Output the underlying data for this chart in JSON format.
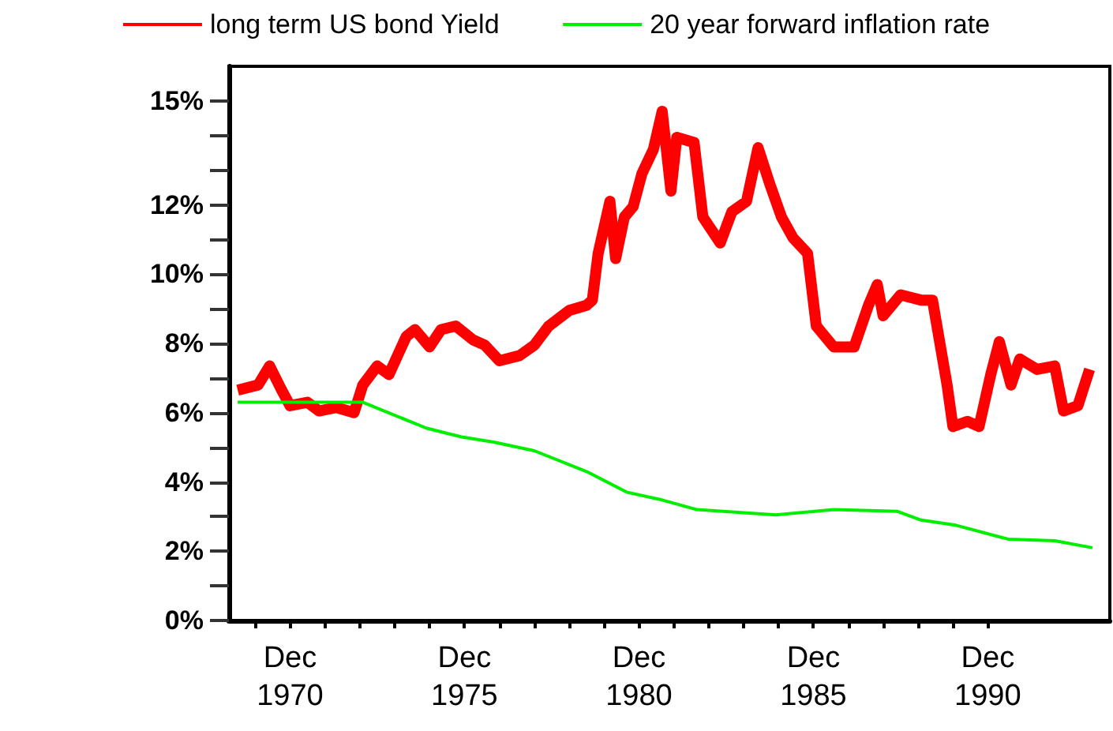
{
  "chart_data": {
    "type": "line",
    "legend": "top",
    "grid": false,
    "marker": "none",
    "line_style": "solid",
    "xlim": [
      "1969-03",
      "1994-06"
    ],
    "ylim": [
      0,
      16
    ],
    "xticks": [
      {
        "value": "1969-12",
        "label": null
      },
      {
        "value": "1970-12",
        "label": "Dec\n1970"
      },
      {
        "value": "1971-12",
        "label": null
      },
      {
        "value": "1972-12",
        "label": null
      },
      {
        "value": "1973-12",
        "label": null
      },
      {
        "value": "1974-12",
        "label": null
      },
      {
        "value": "1975-12",
        "label": "Dec\n1975"
      },
      {
        "value": "1976-12",
        "label": null
      },
      {
        "value": "1977-12",
        "label": null
      },
      {
        "value": "1978-12",
        "label": null
      },
      {
        "value": "1979-12",
        "label": null
      },
      {
        "value": "1980-12",
        "label": "Dec\n1980"
      },
      {
        "value": "1981-12",
        "label": null
      },
      {
        "value": "1982-12",
        "label": null
      },
      {
        "value": "1983-12",
        "label": null
      },
      {
        "value": "1984-12",
        "label": null
      },
      {
        "value": "1985-12",
        "label": "Dec\n1985"
      },
      {
        "value": "1986-12",
        "label": null
      },
      {
        "value": "1987-12",
        "label": null
      },
      {
        "value": "1988-12",
        "label": null
      },
      {
        "value": "1989-12",
        "label": null
      },
      {
        "value": "1990-12",
        "label": "Dec\n1990"
      }
    ],
    "yticks": [
      {
        "value": 0,
        "label": "0%"
      },
      {
        "value": 1,
        "label": null
      },
      {
        "value": 2,
        "label": "2%"
      },
      {
        "value": 3,
        "label": null
      },
      {
        "value": 4,
        "label": "4%"
      },
      {
        "value": 5,
        "label": null
      },
      {
        "value": 6,
        "label": "6%"
      },
      {
        "value": 7,
        "label": null
      },
      {
        "value": 8,
        "label": "8%"
      },
      {
        "value": 9,
        "label": null
      },
      {
        "value": 10,
        "label": "10%"
      },
      {
        "value": 11,
        "label": null
      },
      {
        "value": 12,
        "label": "12%"
      },
      {
        "value": 13,
        "label": null
      },
      {
        "value": 14,
        "label": null
      },
      {
        "value": 15,
        "label": "15%"
      }
    ],
    "series": [
      {
        "name": "long term US bond Yield",
        "color": "#ff0000",
        "x": [
          "1969-06",
          "1970-01",
          "1970-05",
          "1970-09",
          "1970-12",
          "1971-06",
          "1971-10",
          "1972-04",
          "1972-10",
          "1973-01",
          "1973-06",
          "1973-10",
          "1974-04",
          "1974-07",
          "1974-12",
          "1975-04",
          "1975-09",
          "1976-03",
          "1976-07",
          "1976-12",
          "1977-07",
          "1977-12",
          "1978-05",
          "1978-12",
          "1979-06",
          "1979-08",
          "1979-10",
          "1980-02",
          "1980-04",
          "1980-07",
          "1980-10",
          "1981-01",
          "1981-05",
          "1981-08",
          "1981-11",
          "1982-01",
          "1982-07",
          "1982-10",
          "1983-04",
          "1983-08",
          "1984-01",
          "1984-05",
          "1984-09",
          "1985-01",
          "1985-05",
          "1985-10",
          "1986-01",
          "1986-07",
          "1987-02",
          "1987-07",
          "1987-10",
          "1987-12",
          "1988-06",
          "1989-01",
          "1989-05",
          "1989-10",
          "1989-12",
          "1990-05",
          "1990-09",
          "1991-01",
          "1991-04",
          "1991-08",
          "1991-11",
          "1992-05",
          "1992-11",
          "1993-02",
          "1993-07",
          "1993-11"
        ],
        "values": [
          6.65,
          6.8,
          7.35,
          6.67,
          6.2,
          6.3,
          6.05,
          6.15,
          6.0,
          6.8,
          7.35,
          7.1,
          8.2,
          8.4,
          7.9,
          8.4,
          8.5,
          8.1,
          7.95,
          7.5,
          7.65,
          7.95,
          8.5,
          8.95,
          9.1,
          9.25,
          10.6,
          12.1,
          10.45,
          11.65,
          11.95,
          12.9,
          13.6,
          14.7,
          12.4,
          13.95,
          13.8,
          11.65,
          10.9,
          11.8,
          12.1,
          13.65,
          12.6,
          11.65,
          11.05,
          10.6,
          8.5,
          7.9,
          7.9,
          9.1,
          9.7,
          8.8,
          9.4,
          9.25,
          9.25,
          6.8,
          5.6,
          5.75,
          5.6,
          7.1,
          8.05,
          6.8,
          7.55,
          7.25,
          7.35,
          6.05,
          6.2,
          7.25
        ]
      },
      {
        "name": "20 year forward inflation rate",
        "color": "#00ee00",
        "x": [
          "1969-06",
          "1973-01",
          "1974-11",
          "1975-11",
          "1976-10",
          "1977-12",
          "1979-06",
          "1980-08",
          "1981-07",
          "1982-08",
          "1984-11",
          "1986-07",
          "1988-05",
          "1989-01",
          "1990-01",
          "1991-07",
          "1992-11",
          "1993-12"
        ],
        "values": [
          6.3,
          6.3,
          5.55,
          5.3,
          5.15,
          4.9,
          4.3,
          3.7,
          3.5,
          3.2,
          3.05,
          3.2,
          3.15,
          2.9,
          2.75,
          2.35,
          2.3,
          2.1
        ]
      }
    ]
  }
}
